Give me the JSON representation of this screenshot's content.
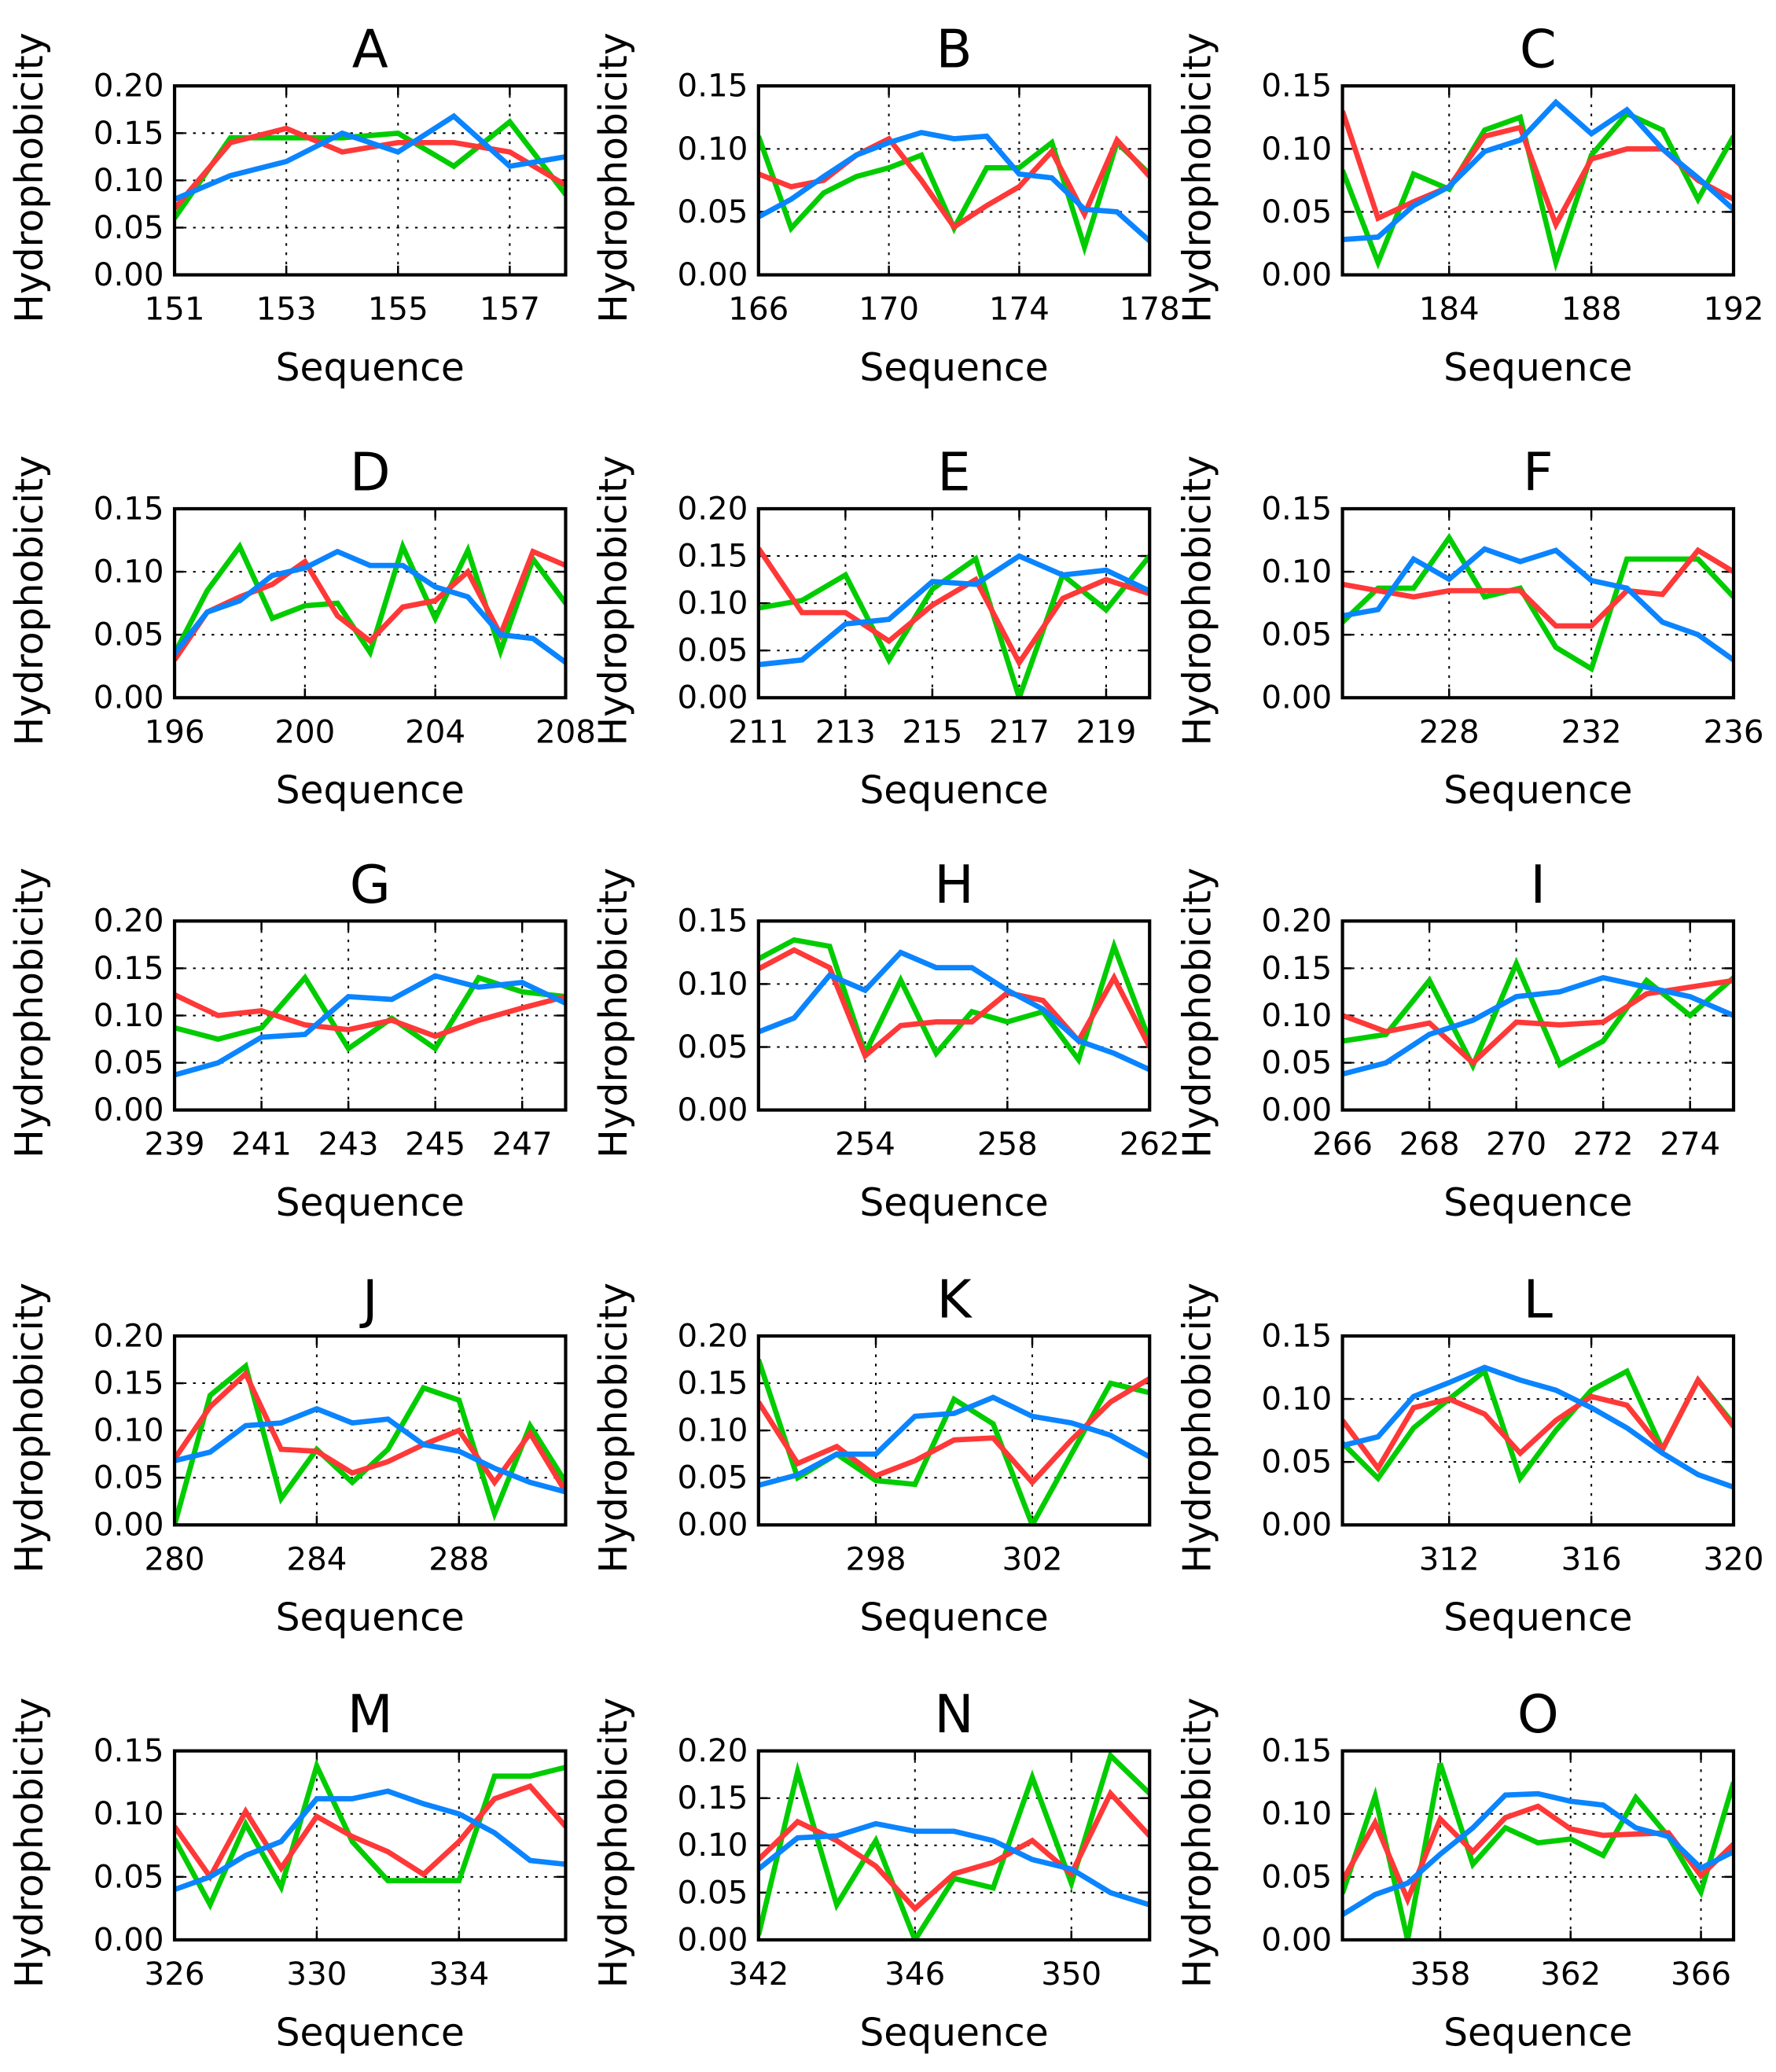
{
  "chart_data": [
    {
      "type": "line",
      "title": "A",
      "xlabel": "Sequence",
      "ylabel": "Hydrophobicity",
      "xlim": [
        151,
        158
      ],
      "ylim": [
        0,
        0.2
      ],
      "xticks": [
        151,
        153,
        155,
        157
      ],
      "yticks": [
        "0.00",
        "0.05",
        "0.10",
        "0.15",
        "0.20"
      ],
      "x_start": 151,
      "series": [
        {
          "color": "#00cc00",
          "values": [
            0.06,
            0.145,
            0.145,
            0.145,
            0.15,
            0.115,
            0.162,
            0.085
          ]
        },
        {
          "color": "#ff3838",
          "values": [
            0.07,
            0.14,
            0.155,
            0.13,
            0.14,
            0.14,
            0.13,
            0.095
          ]
        },
        {
          "color": "#0a84ff",
          "values": [
            0.08,
            0.105,
            0.12,
            0.15,
            0.13,
            0.168,
            0.115,
            0.125
          ]
        }
      ]
    },
    {
      "type": "line",
      "title": "B",
      "xlabel": "Sequence",
      "ylabel": "Hydrophobicity",
      "xlim": [
        166,
        178
      ],
      "ylim": [
        0,
        0.15
      ],
      "xticks": [
        166,
        170,
        174,
        178
      ],
      "yticks": [
        "0.00",
        "0.05",
        "0.10",
        "0.15"
      ],
      "x_start": 166,
      "series": [
        {
          "color": "#00cc00",
          "values": [
            0.11,
            0.037,
            0.065,
            0.078,
            0.085,
            0.095,
            0.037,
            0.085,
            0.085,
            0.105,
            0.022,
            0.105,
            0.08
          ]
        },
        {
          "color": "#ff3838",
          "values": [
            0.08,
            0.07,
            0.075,
            0.095,
            0.108,
            0.075,
            0.038,
            0.055,
            0.07,
            0.098,
            0.048,
            0.107,
            0.078
          ]
        },
        {
          "color": "#0a84ff",
          "values": [
            0.046,
            0.06,
            0.078,
            0.095,
            0.105,
            0.113,
            0.108,
            0.11,
            0.08,
            0.077,
            0.052,
            0.05,
            0.027
          ]
        }
      ]
    },
    {
      "type": "line",
      "title": "C",
      "xlabel": "Sequence",
      "ylabel": "Hydrophobicity",
      "xlim": [
        181,
        192
      ],
      "ylim": [
        0,
        0.15
      ],
      "xticks": [
        184,
        188,
        192
      ],
      "yticks": [
        "0.00",
        "0.05",
        "0.10",
        "0.15"
      ],
      "x_start": 181,
      "series": [
        {
          "color": "#00cc00",
          "values": [
            0.083,
            0.01,
            0.08,
            0.068,
            0.115,
            0.125,
            0.01,
            0.095,
            0.128,
            0.115,
            0.06,
            0.11
          ]
        },
        {
          "color": "#ff3838",
          "values": [
            0.13,
            0.045,
            0.058,
            0.07,
            0.11,
            0.117,
            0.04,
            0.092,
            0.1,
            0.1,
            0.075,
            0.06
          ]
        },
        {
          "color": "#0a84ff",
          "values": [
            0.028,
            0.03,
            0.055,
            0.07,
            0.098,
            0.107,
            0.137,
            0.112,
            0.131,
            0.1,
            0.077,
            0.052
          ]
        }
      ]
    },
    {
      "type": "line",
      "title": "D",
      "xlabel": "Sequence",
      "ylabel": "Hydrophobicity",
      "xlim": [
        196,
        208
      ],
      "ylim": [
        0,
        0.15
      ],
      "xticks": [
        196,
        200,
        204,
        208
      ],
      "yticks": [
        "0.00",
        "0.05",
        "0.10",
        "0.15"
      ],
      "x_start": 196,
      "series": [
        {
          "color": "#00cc00",
          "values": [
            0.035,
            0.085,
            0.12,
            0.063,
            0.073,
            0.075,
            0.036,
            0.12,
            0.063,
            0.117,
            0.037,
            0.11,
            0.075
          ]
        },
        {
          "color": "#ff3838",
          "values": [
            0.03,
            0.068,
            0.08,
            0.09,
            0.108,
            0.065,
            0.045,
            0.072,
            0.077,
            0.1,
            0.05,
            0.116,
            0.105
          ]
        },
        {
          "color": "#0a84ff",
          "values": [
            0.035,
            0.068,
            0.077,
            0.097,
            0.103,
            0.116,
            0.105,
            0.105,
            0.088,
            0.08,
            0.05,
            0.047,
            0.028
          ]
        }
      ]
    },
    {
      "type": "line",
      "title": "E",
      "xlabel": "Sequence",
      "ylabel": "Hydrophobicity",
      "xlim": [
        211,
        220
      ],
      "ylim": [
        0,
        0.2
      ],
      "xticks": [
        211,
        213,
        215,
        217,
        219
      ],
      "yticks": [
        "0.00",
        "0.05",
        "0.10",
        "0.15",
        "0.20"
      ],
      "x_start": 211,
      "series": [
        {
          "color": "#00cc00",
          "values": [
            0.095,
            0.103,
            0.13,
            0.04,
            0.115,
            0.147,
            0.0,
            0.13,
            0.093,
            0.15
          ]
        },
        {
          "color": "#ff3838",
          "values": [
            0.158,
            0.09,
            0.09,
            0.06,
            0.098,
            0.125,
            0.037,
            0.105,
            0.125,
            0.11
          ]
        },
        {
          "color": "#0a84ff",
          "values": [
            0.035,
            0.04,
            0.078,
            0.083,
            0.123,
            0.12,
            0.15,
            0.13,
            0.135,
            0.113
          ]
        }
      ]
    },
    {
      "type": "line",
      "title": "F",
      "xlabel": "Sequence",
      "ylabel": "Hydrophobicity",
      "xlim": [
        225,
        236
      ],
      "ylim": [
        0,
        0.15
      ],
      "xticks": [
        228,
        232,
        236
      ],
      "yticks": [
        "0.00",
        "0.05",
        "0.10",
        "0.15"
      ],
      "x_start": 225,
      "series": [
        {
          "color": "#00cc00",
          "values": [
            0.06,
            0.087,
            0.087,
            0.127,
            0.08,
            0.087,
            0.04,
            0.023,
            0.11,
            0.11,
            0.11,
            0.08
          ]
        },
        {
          "color": "#ff3838",
          "values": [
            0.09,
            0.085,
            0.08,
            0.085,
            0.085,
            0.085,
            0.057,
            0.057,
            0.085,
            0.082,
            0.117,
            0.1
          ]
        },
        {
          "color": "#0a84ff",
          "values": [
            0.065,
            0.07,
            0.11,
            0.094,
            0.118,
            0.108,
            0.117,
            0.093,
            0.087,
            0.06,
            0.05,
            0.03
          ]
        }
      ]
    },
    {
      "type": "line",
      "title": "G",
      "xlabel": "Sequence",
      "ylabel": "Hydrophobicity",
      "xlim": [
        239,
        248
      ],
      "ylim": [
        0,
        0.2
      ],
      "xticks": [
        239,
        241,
        243,
        245,
        247
      ],
      "yticks": [
        "0.00",
        "0.05",
        "0.10",
        "0.15",
        "0.20"
      ],
      "x_start": 239,
      "series": [
        {
          "color": "#00cc00",
          "values": [
            0.087,
            0.075,
            0.087,
            0.14,
            0.065,
            0.097,
            0.065,
            0.14,
            0.125,
            0.12
          ]
        },
        {
          "color": "#ff3838",
          "values": [
            0.122,
            0.1,
            0.105,
            0.09,
            0.085,
            0.095,
            0.078,
            0.095,
            0.108,
            0.12
          ]
        },
        {
          "color": "#0a84ff",
          "values": [
            0.037,
            0.05,
            0.077,
            0.08,
            0.12,
            0.117,
            0.142,
            0.13,
            0.135,
            0.113
          ]
        }
      ]
    },
    {
      "type": "line",
      "title": "H",
      "xlabel": "Sequence",
      "ylabel": "Hydrophobicity",
      "xlim": [
        251,
        262
      ],
      "ylim": [
        0,
        0.15
      ],
      "xticks": [
        254,
        258,
        262
      ],
      "yticks": [
        "0.00",
        "0.05",
        "0.10",
        "0.15"
      ],
      "x_start": 251,
      "series": [
        {
          "color": "#00cc00",
          "values": [
            0.12,
            0.135,
            0.13,
            0.045,
            0.103,
            0.045,
            0.078,
            0.07,
            0.078,
            0.04,
            0.13,
            0.055
          ]
        },
        {
          "color": "#ff3838",
          "values": [
            0.112,
            0.127,
            0.113,
            0.043,
            0.067,
            0.07,
            0.07,
            0.093,
            0.087,
            0.055,
            0.105,
            0.05
          ]
        },
        {
          "color": "#0a84ff",
          "values": [
            0.062,
            0.073,
            0.107,
            0.095,
            0.125,
            0.113,
            0.113,
            0.095,
            0.08,
            0.055,
            0.045,
            0.032
          ]
        }
      ]
    },
    {
      "type": "line",
      "title": "I",
      "xlabel": "Sequence",
      "ylabel": "Hydrophobicity",
      "xlim": [
        266,
        275
      ],
      "ylim": [
        0,
        0.2
      ],
      "xticks": [
        266,
        268,
        270,
        272,
        274
      ],
      "yticks": [
        "0.00",
        "0.05",
        "0.10",
        "0.15",
        "0.20"
      ],
      "x_start": 266,
      "series": [
        {
          "color": "#00cc00",
          "values": [
            0.073,
            0.08,
            0.137,
            0.047,
            0.155,
            0.048,
            0.073,
            0.137,
            0.1,
            0.14
          ]
        },
        {
          "color": "#ff3838",
          "values": [
            0.1,
            0.083,
            0.092,
            0.05,
            0.093,
            0.09,
            0.093,
            0.123,
            0.13,
            0.137
          ]
        },
        {
          "color": "#0a84ff",
          "values": [
            0.038,
            0.05,
            0.08,
            0.095,
            0.12,
            0.125,
            0.14,
            0.13,
            0.12,
            0.1
          ]
        }
      ]
    },
    {
      "type": "line",
      "title": "J",
      "xlabel": "Sequence",
      "ylabel": "Hydrophobicity",
      "xlim": [
        280,
        291
      ],
      "ylim": [
        0,
        0.2
      ],
      "xticks": [
        280,
        284,
        288
      ],
      "yticks": [
        "0.00",
        "0.05",
        "0.10",
        "0.15",
        "0.20"
      ],
      "x_start": 280,
      "series": [
        {
          "color": "#00cc00",
          "values": [
            0.0,
            0.137,
            0.168,
            0.028,
            0.08,
            0.045,
            0.08,
            0.145,
            0.132,
            0.012,
            0.105,
            0.045
          ]
        },
        {
          "color": "#ff3838",
          "values": [
            0.07,
            0.125,
            0.16,
            0.08,
            0.078,
            0.055,
            0.067,
            0.085,
            0.1,
            0.045,
            0.097,
            0.035
          ]
        },
        {
          "color": "#0a84ff",
          "values": [
            0.068,
            0.077,
            0.105,
            0.108,
            0.123,
            0.108,
            0.112,
            0.085,
            0.078,
            0.06,
            0.045,
            0.035
          ]
        }
      ]
    },
    {
      "type": "line",
      "title": "K",
      "xlabel": "Sequence",
      "ylabel": "Hydrophobicity",
      "xlim": [
        295,
        305
      ],
      "ylim": [
        0,
        0.2
      ],
      "xticks": [
        298,
        302
      ],
      "yticks": [
        "0.00",
        "0.05",
        "0.10",
        "0.15",
        "0.20"
      ],
      "x_start": 295,
      "series": [
        {
          "color": "#00cc00",
          "values": [
            0.175,
            0.05,
            0.075,
            0.047,
            0.043,
            0.133,
            0.107,
            0.0,
            0.075,
            0.15,
            0.14
          ]
        },
        {
          "color": "#ff3838",
          "values": [
            0.13,
            0.065,
            0.083,
            0.052,
            0.068,
            0.09,
            0.092,
            0.045,
            0.09,
            0.13,
            0.155
          ]
        },
        {
          "color": "#0a84ff",
          "values": [
            0.042,
            0.053,
            0.075,
            0.075,
            0.115,
            0.118,
            0.135,
            0.115,
            0.108,
            0.095,
            0.072
          ]
        }
      ]
    },
    {
      "type": "line",
      "title": "L",
      "xlabel": "Sequence",
      "ylabel": "Hydrophobicity",
      "xlim": [
        309,
        320
      ],
      "ylim": [
        0,
        0.15
      ],
      "xticks": [
        312,
        316,
        320
      ],
      "yticks": [
        "0.00",
        "0.05",
        "0.10",
        "0.15"
      ],
      "x_start": 309,
      "series": [
        {
          "color": "#00cc00",
          "values": [
            0.065,
            0.037,
            0.077,
            0.1,
            0.122,
            0.037,
            0.075,
            0.107,
            0.122,
            0.06,
            0.115,
            0.08
          ]
        },
        {
          "color": "#ff3838",
          "values": [
            0.083,
            0.045,
            0.093,
            0.1,
            0.088,
            0.057,
            0.083,
            0.102,
            0.095,
            0.06,
            0.115,
            0.078
          ]
        },
        {
          "color": "#0a84ff",
          "values": [
            0.063,
            0.07,
            0.102,
            0.113,
            0.125,
            0.115,
            0.107,
            0.093,
            0.077,
            0.057,
            0.04,
            0.03
          ]
        }
      ]
    },
    {
      "type": "line",
      "title": "M",
      "xlabel": "Sequence",
      "ylabel": "Hydrophobicity",
      "xlim": [
        326,
        337
      ],
      "ylim": [
        0,
        0.15
      ],
      "xticks": [
        326,
        330,
        334
      ],
      "yticks": [
        "0.00",
        "0.05",
        "0.10",
        "0.15"
      ],
      "x_start": 326,
      "series": [
        {
          "color": "#00cc00",
          "values": [
            0.08,
            0.028,
            0.092,
            0.042,
            0.138,
            0.078,
            0.047,
            0.047,
            0.047,
            0.13,
            0.13,
            0.137
          ]
        },
        {
          "color": "#ff3838",
          "values": [
            0.09,
            0.05,
            0.102,
            0.057,
            0.098,
            0.082,
            0.07,
            0.052,
            0.078,
            0.112,
            0.122,
            0.09
          ]
        },
        {
          "color": "#0a84ff",
          "values": [
            0.04,
            0.05,
            0.067,
            0.078,
            0.112,
            0.112,
            0.118,
            0.108,
            0.1,
            0.085,
            0.063,
            0.06
          ]
        }
      ]
    },
    {
      "type": "line",
      "title": "N",
      "xlabel": "Sequence",
      "ylabel": "Hydrophobicity",
      "xlim": [
        342,
        352
      ],
      "ylim": [
        0,
        0.2
      ],
      "xticks": [
        342,
        346,
        350
      ],
      "yticks": [
        "0.00",
        "0.05",
        "0.10",
        "0.15",
        "0.20"
      ],
      "x_start": 342,
      "series": [
        {
          "color": "#00cc00",
          "values": [
            0.005,
            0.178,
            0.037,
            0.105,
            0.0,
            0.065,
            0.055,
            0.172,
            0.06,
            0.195,
            0.155
          ]
        },
        {
          "color": "#ff3838",
          "values": [
            0.085,
            0.125,
            0.105,
            0.078,
            0.033,
            0.07,
            0.082,
            0.105,
            0.07,
            0.155,
            0.11
          ]
        },
        {
          "color": "#0a84ff",
          "values": [
            0.075,
            0.108,
            0.11,
            0.123,
            0.115,
            0.115,
            0.105,
            0.085,
            0.075,
            0.05,
            0.037
          ]
        }
      ]
    },
    {
      "type": "line",
      "title": "O",
      "xlabel": "Sequence",
      "ylabel": "Hydrophobicity",
      "xlim": [
        355,
        367
      ],
      "ylim": [
        0,
        0.15
      ],
      "xticks": [
        358,
        362,
        366
      ],
      "yticks": [
        "0.00",
        "0.05",
        "0.10",
        "0.15"
      ],
      "x_start": 355,
      "series": [
        {
          "color": "#00cc00",
          "values": [
            0.037,
            0.114,
            0.0,
            0.14,
            0.06,
            0.089,
            0.077,
            0.08,
            0.067,
            0.113,
            0.082,
            0.038,
            0.125
          ]
        },
        {
          "color": "#ff3838",
          "values": [
            0.047,
            0.093,
            0.032,
            0.096,
            0.07,
            0.097,
            0.106,
            0.088,
            0.083,
            0.084,
            0.085,
            0.051,
            0.076
          ]
        },
        {
          "color": "#0a84ff",
          "values": [
            0.02,
            0.036,
            0.045,
            0.068,
            0.089,
            0.115,
            0.116,
            0.11,
            0.107,
            0.089,
            0.082,
            0.057,
            0.07
          ]
        }
      ]
    }
  ]
}
